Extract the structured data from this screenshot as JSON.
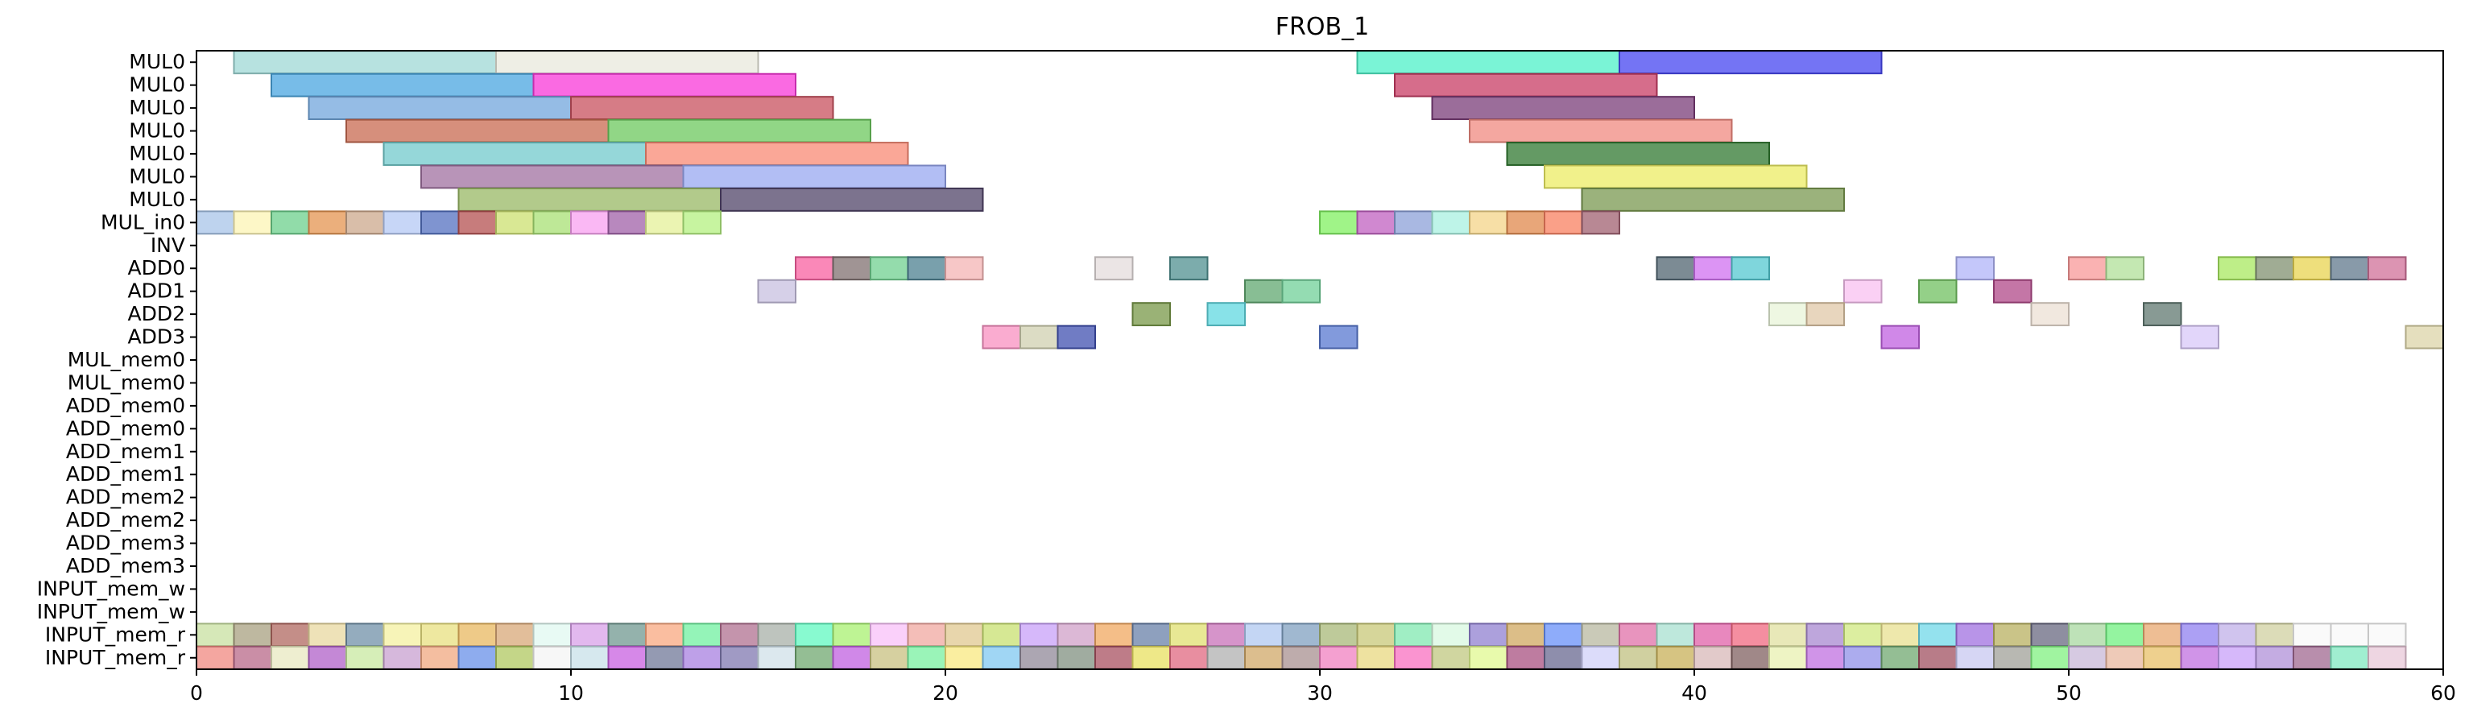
{
  "chart_data": {
    "type": "gantt",
    "title": "FROB_1",
    "xlim": [
      0,
      60
    ],
    "xticks": [
      0,
      10,
      20,
      30,
      40,
      50,
      60
    ],
    "grid": false,
    "rows": [
      "MUL0",
      "MUL0",
      "MUL0",
      "MUL0",
      "MUL0",
      "MUL0",
      "MUL0",
      "MUL_in0",
      "INV",
      "ADD0",
      "ADD1",
      "ADD2",
      "ADD3",
      "MUL_mem0",
      "MUL_mem0",
      "ADD_mem0",
      "ADD_mem0",
      "ADD_mem1",
      "ADD_mem1",
      "ADD_mem2",
      "ADD_mem2",
      "ADD_mem3",
      "ADD_mem3",
      "INPUT_mem_w",
      "INPUT_mem_w",
      "INPUT_mem_r",
      "INPUT_mem_r"
    ],
    "bars": [
      {
        "row": 0,
        "start": 1,
        "end": 8,
        "color": "#9fd8d6"
      },
      {
        "row": 0,
        "start": 8,
        "end": 15,
        "color": "#e8e8dc"
      },
      {
        "row": 0,
        "start": 31,
        "end": 38,
        "color": "#4ef0c8"
      },
      {
        "row": 0,
        "start": 38,
        "end": 45,
        "color": "#4646f0"
      },
      {
        "row": 1,
        "start": 2,
        "end": 9,
        "color": "#4aa6e0"
      },
      {
        "row": 1,
        "start": 9,
        "end": 16,
        "color": "#f838d8"
      },
      {
        "row": 1,
        "start": 32,
        "end": 39,
        "color": "#c83c64"
      },
      {
        "row": 2,
        "start": 3,
        "end": 10,
        "color": "#72a6dc"
      },
      {
        "row": 2,
        "start": 10,
        "end": 17,
        "color": "#c8505e"
      },
      {
        "row": 2,
        "start": 33,
        "end": 40,
        "color": "#7a3c78"
      },
      {
        "row": 3,
        "start": 4,
        "end": 11,
        "color": "#c86a50"
      },
      {
        "row": 3,
        "start": 11,
        "end": 18,
        "color": "#6cc85e"
      },
      {
        "row": 3,
        "start": 34,
        "end": 41,
        "color": "#f08a80"
      },
      {
        "row": 4,
        "start": 5,
        "end": 12,
        "color": "#72cacc"
      },
      {
        "row": 4,
        "start": 12,
        "end": 19,
        "color": "#f88a74"
      },
      {
        "row": 4,
        "start": 35,
        "end": 42,
        "color": "#307830"
      },
      {
        "row": 5,
        "start": 6,
        "end": 13,
        "color": "#a070a0"
      },
      {
        "row": 5,
        "start": 13,
        "end": 20,
        "color": "#98a8f0"
      },
      {
        "row": 5,
        "start": 36,
        "end": 43,
        "color": "#ecec64"
      },
      {
        "row": 6,
        "start": 7,
        "end": 14,
        "color": "#98b864"
      },
      {
        "row": 6,
        "start": 14,
        "end": 21,
        "color": "#504468"
      },
      {
        "row": 6,
        "start": 37,
        "end": 44,
        "color": "#7a9850"
      },
      {
        "row": 7,
        "start": 0,
        "end": 1,
        "color": "#a8c4e8"
      },
      {
        "row": 7,
        "start": 1,
        "end": 2,
        "color": "#fcf4b4"
      },
      {
        "row": 7,
        "start": 2,
        "end": 3,
        "color": "#6cd08c"
      },
      {
        "row": 7,
        "start": 3,
        "end": 4,
        "color": "#e49450"
      },
      {
        "row": 7,
        "start": 4,
        "end": 5,
        "color": "#cca88c"
      },
      {
        "row": 7,
        "start": 5,
        "end": 6,
        "color": "#b4c8f4"
      },
      {
        "row": 7,
        "start": 6,
        "end": 7,
        "color": "#5470c0"
      },
      {
        "row": 7,
        "start": 7,
        "end": 8,
        "color": "#b45050"
      },
      {
        "row": 7,
        "start": 8,
        "end": 9,
        "color": "#cce070"
      },
      {
        "row": 7,
        "start": 9,
        "end": 10,
        "color": "#a8e074"
      },
      {
        "row": 7,
        "start": 10,
        "end": 11,
        "color": "#f8a0f0"
      },
      {
        "row": 7,
        "start": 11,
        "end": 12,
        "color": "#a060a8"
      },
      {
        "row": 7,
        "start": 12,
        "end": 13,
        "color": "#e4f098"
      },
      {
        "row": 7,
        "start": 13,
        "end": 14,
        "color": "#b4f080"
      },
      {
        "row": 7,
        "start": 30,
        "end": 31,
        "color": "#80f060"
      },
      {
        "row": 7,
        "start": 31,
        "end": 32,
        "color": "#c060c0"
      },
      {
        "row": 7,
        "start": 32,
        "end": 33,
        "color": "#8ca0d8"
      },
      {
        "row": 7,
        "start": 33,
        "end": 34,
        "color": "#a8f0e0"
      },
      {
        "row": 7,
        "start": 34,
        "end": 35,
        "color": "#f4d488"
      },
      {
        "row": 7,
        "start": 35,
        "end": 36,
        "color": "#e0884c"
      },
      {
        "row": 7,
        "start": 36,
        "end": 37,
        "color": "#f88060"
      },
      {
        "row": 7,
        "start": 37,
        "end": 38,
        "color": "#a06070"
      },
      {
        "row": 9,
        "start": 16,
        "end": 17,
        "color": "#f860a0"
      },
      {
        "row": 9,
        "start": 17,
        "end": 18,
        "color": "#807070"
      },
      {
        "row": 9,
        "start": 18,
        "end": 19,
        "color": "#70d090"
      },
      {
        "row": 9,
        "start": 19,
        "end": 20,
        "color": "#4c8090"
      },
      {
        "row": 9,
        "start": 20,
        "end": 21,
        "color": "#f4b4b4"
      },
      {
        "row": 9,
        "start": 24,
        "end": 25,
        "color": "#e4dcdc"
      },
      {
        "row": 9,
        "start": 26,
        "end": 27,
        "color": "#509090"
      },
      {
        "row": 9,
        "start": 39,
        "end": 40,
        "color": "#506470"
      },
      {
        "row": 9,
        "start": 40,
        "end": 41,
        "color": "#d070f0"
      },
      {
        "row": 9,
        "start": 41,
        "end": 42,
        "color": "#54c8d0"
      },
      {
        "row": 9,
        "start": 47,
        "end": 48,
        "color": "#b0b4f8"
      },
      {
        "row": 9,
        "start": 50,
        "end": 51,
        "color": "#f89898"
      },
      {
        "row": 9,
        "start": 51,
        "end": 52,
        "color": "#b0e098"
      },
      {
        "row": 9,
        "start": 54,
        "end": 55,
        "color": "#a8e860"
      },
      {
        "row": 9,
        "start": 55,
        "end": 56,
        "color": "#809070"
      },
      {
        "row": 9,
        "start": 56,
        "end": 57,
        "color": "#e8d450"
      },
      {
        "row": 9,
        "start": 57,
        "end": 58,
        "color": "#60788c"
      },
      {
        "row": 9,
        "start": 58,
        "end": 59,
        "color": "#d07098"
      },
      {
        "row": 10,
        "start": 15,
        "end": 16,
        "color": "#c8c0e0"
      },
      {
        "row": 10,
        "start": 28,
        "end": 29,
        "color": "#60a870"
      },
      {
        "row": 10,
        "start": 29,
        "end": 30,
        "color": "#70d098"
      },
      {
        "row": 10,
        "start": 44,
        "end": 45,
        "color": "#f8c0f0"
      },
      {
        "row": 10,
        "start": 46,
        "end": 47,
        "color": "#70c060"
      },
      {
        "row": 10,
        "start": 48,
        "end": 49,
        "color": "#b04888"
      },
      {
        "row": 11,
        "start": 25,
        "end": 26,
        "color": "#789848"
      },
      {
        "row": 11,
        "start": 27,
        "end": 28,
        "color": "#60d8e0"
      },
      {
        "row": 11,
        "start": 42,
        "end": 43,
        "color": "#e8f4d8"
      },
      {
        "row": 11,
        "start": 43,
        "end": 44,
        "color": "#e0c8a8"
      },
      {
        "row": 11,
        "start": 49,
        "end": 50,
        "color": "#ece0d4"
      },
      {
        "row": 11,
        "start": 52,
        "end": 53,
        "color": "#607870"
      },
      {
        "row": 12,
        "start": 21,
        "end": 22,
        "color": "#f890c0"
      },
      {
        "row": 12,
        "start": 22,
        "end": 23,
        "color": "#d0d0b0"
      },
      {
        "row": 12,
        "start": 23,
        "end": 24,
        "color": "#4050b0"
      },
      {
        "row": 12,
        "start": 30,
        "end": 31,
        "color": "#5878d0"
      },
      {
        "row": 12,
        "start": 45,
        "end": 46,
        "color": "#c060e0"
      },
      {
        "row": 12,
        "start": 53,
        "end": 54,
        "color": "#d8c8f8"
      },
      {
        "row": 12,
        "start": 59,
        "end": 60,
        "color": "#dcd4a8"
      }
    ],
    "strip_rows": [
      {
        "row": 25,
        "start": 0,
        "end": 59,
        "colors": [
          "#c8e0a0",
          "#a8a080",
          "#b06860",
          "#e8d8a0",
          "#7090a8",
          "#f4f0a0",
          "#e8e080",
          "#e8b860",
          "#d8a878",
          "#e0f8f0",
          "#d8a0e8",
          "#709890",
          "#f8a880",
          "#70f0a0",
          "#b07090",
          "#a8b0a8",
          "#60f8c0",
          "#a8f070",
          "#f8c0f8",
          "#f0a8a0",
          "#e0c890",
          "#c8e070",
          "#c8a0f8",
          "#d0a0c8",
          "#f0a860",
          "#6880a8",
          "#e0e070",
          "#c870b8",
          "#b0c8f0",
          "#80a0c0",
          "#a8b878",
          "#c8c878",
          "#80e8b0",
          "#d8f8e0",
          "#9080d0",
          "#d0a860",
          "#6890f8",
          "#b8b8a0",
          "#e070a8",
          "#a8e0d0",
          "#e060a8",
          "#f06880",
          "#e0e0a0",
          "#a888d0",
          "#d0e880",
          "#e8e090",
          "#70d8e8",
          "#a070e0",
          "#b8b060",
          "#686880",
          "#a8d8a0",
          "#70f080",
          "#e8a870",
          "#9080f0",
          "#c0b0e8",
          "#d0d0a0",
          "#f8f8f8",
          "#f8f8f8",
          "#f8f8f8"
        ]
      },
      {
        "row": 26,
        "start": 0,
        "end": 59,
        "colors": [
          "#f08880",
          "#b86888",
          "#e8e8c0",
          "#b060c8",
          "#c8e8a0",
          "#c8a0d0",
          "#f0a880",
          "#6890e8",
          "#b0c860",
          "#f4f4f4",
          "#c8e0e8",
          "#c860e0",
          "#707898",
          "#a880e0",
          "#8078b0",
          "#d0e0e8",
          "#70a870",
          "#c060e0",
          "#c8c080",
          "#78f0a0",
          "#f8e880",
          "#80c8f0",
          "#908898",
          "#809080",
          "#a85060",
          "#e8e060",
          "#e06880",
          "#b0b0b0",
          "#d0a868",
          "#a89090",
          "#f080c0",
          "#e8d880",
          "#f870c0",
          "#c0c880",
          "#e0f890",
          "#a85080",
          "#686890",
          "#d0d0f8",
          "#c0c080",
          "#c8b058",
          "#d8b8b8",
          "#806060",
          "#e8f0b0",
          "#c070e0",
          "#9090e8",
          "#70a870",
          "#a05060",
          "#c8c8f0",
          "#a0a098",
          "#80f080",
          "#c8b8d8",
          "#e8b8a0",
          "#e8c068",
          "#c070e0",
          "#c8a0f8",
          "#b090d8",
          "#a06890",
          "#80e8c0",
          "#e8c8d8"
        ]
      }
    ]
  }
}
